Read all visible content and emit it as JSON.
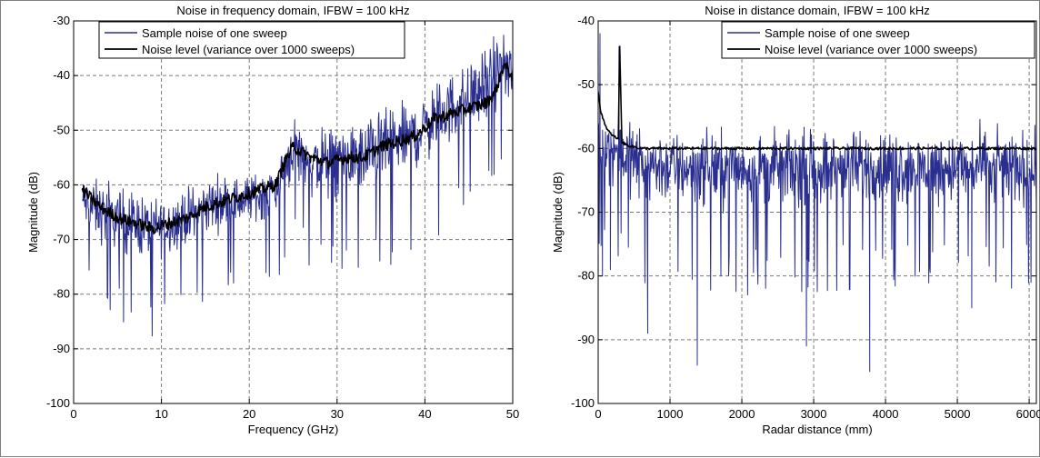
{
  "chart_data": [
    {
      "type": "line",
      "title": "Noise in frequency domain, IFBW = 100 kHz",
      "xlabel": "Frequency (GHz)",
      "ylabel": "Magnitude (dB)",
      "xlim": [
        0,
        50
      ],
      "ylim": [
        -100,
        -30
      ],
      "xticks": [
        0,
        10,
        20,
        30,
        40,
        50
      ],
      "yticks": [
        -100,
        -90,
        -80,
        -70,
        -60,
        -50,
        -40,
        -30
      ],
      "grid": true,
      "legend_position": "top-center",
      "series": [
        {
          "name": "Sample noise of one sweep",
          "color": "#2a2f8f",
          "kind": "noisy",
          "x": [
            1,
            3,
            5,
            7,
            9,
            11,
            13,
            15,
            17,
            19,
            21,
            23,
            25,
            27,
            29,
            31,
            33,
            35,
            37,
            39,
            41,
            43,
            45,
            47,
            49,
            50
          ],
          "center": [
            -63,
            -65,
            -66,
            -67,
            -68,
            -67,
            -66,
            -64,
            -63,
            -63,
            -62,
            -61,
            -53,
            -56,
            -56,
            -55,
            -55,
            -53,
            -52,
            -51,
            -48,
            -46,
            -44,
            -42,
            -38,
            -40
          ],
          "amplitude": [
            6,
            8,
            8,
            8,
            8,
            7,
            7,
            7,
            7,
            6,
            6,
            7,
            8,
            9,
            9,
            9,
            9,
            9,
            9,
            9,
            9,
            9,
            9,
            9,
            8,
            8
          ]
        },
        {
          "name": "Noise level (variance over 1000 sweeps)",
          "color": "#000000",
          "kind": "smooth",
          "x": [
            1,
            3,
            5,
            7,
            9,
            11,
            13,
            15,
            17,
            19,
            21,
            23,
            24,
            25,
            27,
            29,
            31,
            33,
            35,
            37,
            39,
            41,
            43,
            45,
            47,
            48,
            49,
            50
          ],
          "y": [
            -61,
            -64,
            -66,
            -67,
            -68,
            -67,
            -66,
            -64,
            -63,
            -62,
            -61,
            -60,
            -56,
            -53,
            -55,
            -56,
            -55,
            -55,
            -53,
            -52,
            -51,
            -48,
            -47,
            -46,
            -45,
            -43,
            -38,
            -40
          ]
        }
      ]
    },
    {
      "type": "line",
      "title": "Noise in distance domain, IFBW = 100 kHz",
      "xlabel": "Radar distance (mm)",
      "ylabel": "Magnitude (dB)",
      "xlim": [
        0,
        6100
      ],
      "ylim": [
        -100,
        -40
      ],
      "xticks": [
        0,
        1000,
        2000,
        3000,
        4000,
        5000,
        6000
      ],
      "yticks": [
        -100,
        -90,
        -80,
        -70,
        -60,
        -50,
        -40
      ],
      "grid": true,
      "legend_position": "top-right",
      "series": [
        {
          "name": "Sample noise of one sweep",
          "color": "#2a2f8f",
          "kind": "noisy",
          "x": [
            0,
            100,
            200,
            300,
            500,
            1000,
            2000,
            3000,
            4000,
            5000,
            6000,
            6100
          ],
          "center": [
            -60,
            -60,
            -60,
            -60,
            -62,
            -63,
            -63,
            -63,
            -63,
            -63,
            -63,
            -63
          ],
          "amplitude": [
            8,
            7,
            7,
            7,
            8,
            8,
            8,
            8,
            8,
            8,
            8,
            8
          ],
          "spikes": [
            {
              "x": 25,
              "y": -42
            },
            {
              "x": 60,
              "y": -80
            },
            {
              "x": 170,
              "y": -79
            },
            {
              "x": 290,
              "y": -44
            },
            {
              "x": 690,
              "y": -89
            },
            {
              "x": 1380,
              "y": -94
            },
            {
              "x": 2900,
              "y": -91
            },
            {
              "x": 3780,
              "y": -95
            },
            {
              "x": 5200,
              "y": -85
            }
          ]
        },
        {
          "name": "Noise level (variance over 1000 sweeps)",
          "color": "#000000",
          "kind": "smooth",
          "x": [
            0,
            30,
            60,
            120,
            200,
            280,
            300,
            330,
            400,
            600,
            1000,
            2000,
            3000,
            4000,
            5000,
            6000,
            6100
          ],
          "y": [
            -51,
            -54,
            -55,
            -57,
            -58,
            -58.5,
            -44,
            -59,
            -59.5,
            -60,
            -60,
            -60,
            -60,
            -60,
            -60,
            -60,
            -60
          ]
        }
      ]
    }
  ]
}
